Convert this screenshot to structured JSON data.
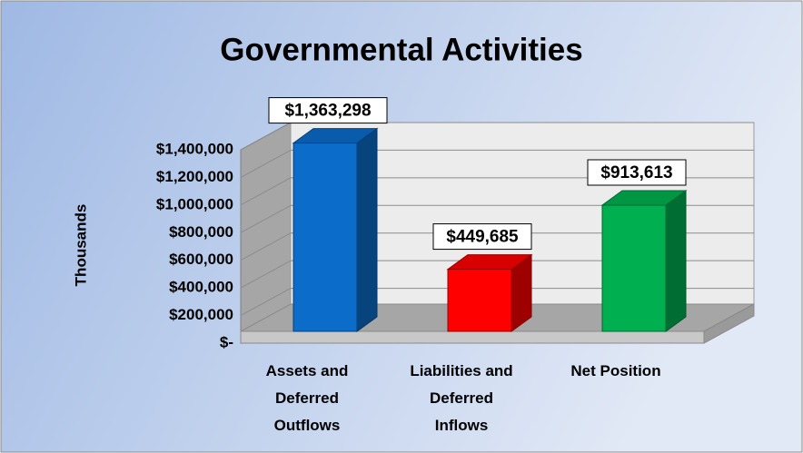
{
  "chart_data": {
    "type": "bar3d",
    "title": "Governmental Activities",
    "y_axis_label": "Thousands",
    "categories": [
      "Assets and\nDeferred\nOutflows",
      "Liabilities and\nDeferred\nInflows",
      "Net Position"
    ],
    "values": [
      1363298,
      449685,
      913613
    ],
    "value_labels": [
      "$1,363,298",
      "$449,685",
      "$913,613"
    ],
    "colors": [
      "#0b6cc9",
      "#ff0000",
      "#00b050"
    ],
    "ylim": [
      0,
      1400000
    ],
    "yticks": [
      {
        "value": 0,
        "label": "$-"
      },
      {
        "value": 200000,
        "label": "$200,000"
      },
      {
        "value": 400000,
        "label": "$400,000"
      },
      {
        "value": 600000,
        "label": "$600,000"
      },
      {
        "value": 800000,
        "label": "$800,000"
      },
      {
        "value": 1000000,
        "label": "$1,000,000"
      },
      {
        "value": 1200000,
        "label": "$1,200,000"
      },
      {
        "value": 1400000,
        "label": "$1,400,000"
      }
    ],
    "grid": true
  }
}
